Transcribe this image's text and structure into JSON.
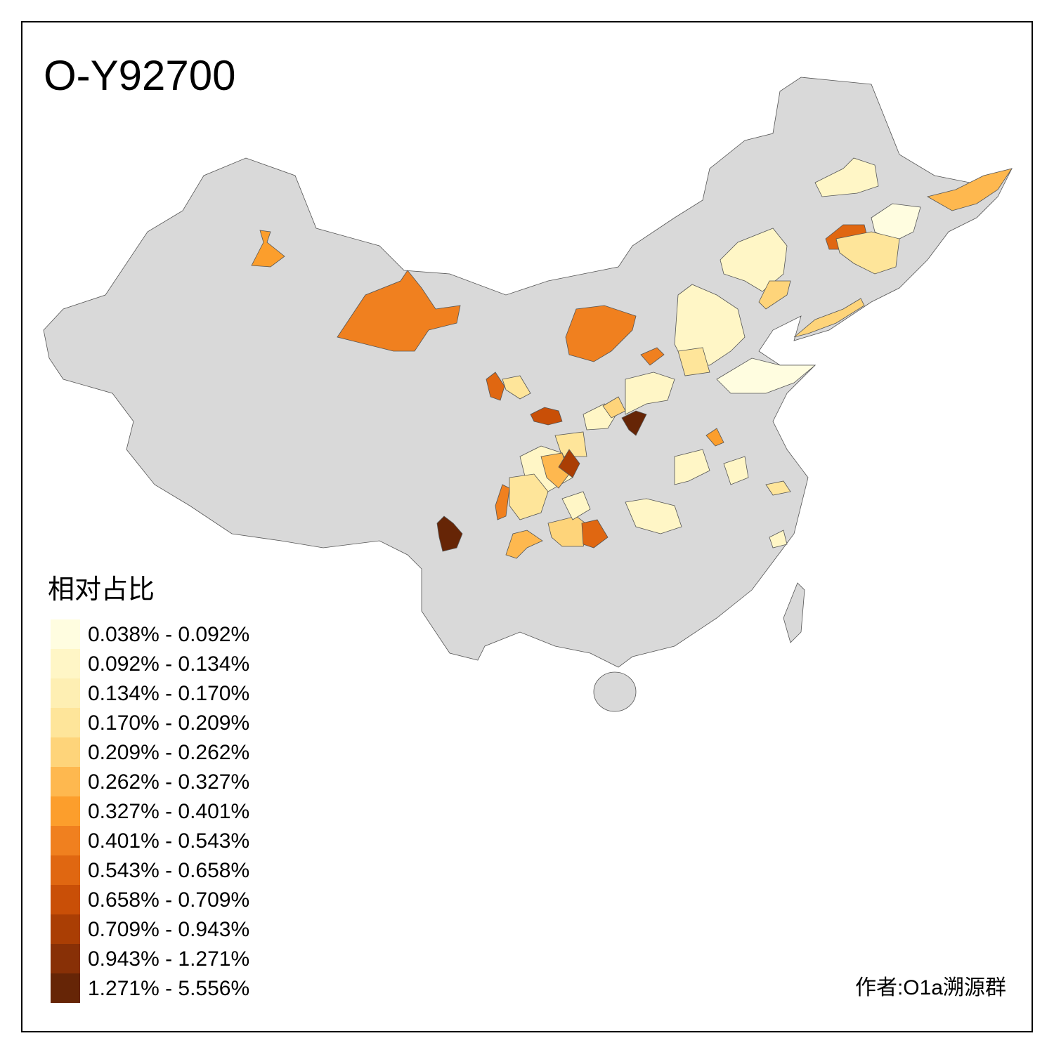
{
  "title": "O-Y92700",
  "legend": {
    "title": "相对占比",
    "items": [
      {
        "label": "0.038% - 0.092%",
        "color": "#fffde0"
      },
      {
        "label": "0.092% - 0.134%",
        "color": "#fff6c6"
      },
      {
        "label": "0.134% - 0.170%",
        "color": "#feefb3"
      },
      {
        "label": "0.170% - 0.209%",
        "color": "#fee59a"
      },
      {
        "label": "0.209% - 0.262%",
        "color": "#fed47a"
      },
      {
        "label": "0.262% - 0.327%",
        "color": "#feb84f"
      },
      {
        "label": "0.327% - 0.401%",
        "color": "#fc9e2c"
      },
      {
        "label": "0.401% - 0.543%",
        "color": "#f0801f"
      },
      {
        "label": "0.543% - 0.658%",
        "color": "#e06711"
      },
      {
        "label": "0.658% - 0.709%",
        "color": "#c94f07"
      },
      {
        "label": "0.709% - 0.943%",
        "color": "#aa3e04"
      },
      {
        "label": "0.943% - 1.271%",
        "color": "#883006"
      },
      {
        "label": "1.271% - 5.556%",
        "color": "#662506"
      }
    ]
  },
  "author": "作者:O1a溯源群"
}
